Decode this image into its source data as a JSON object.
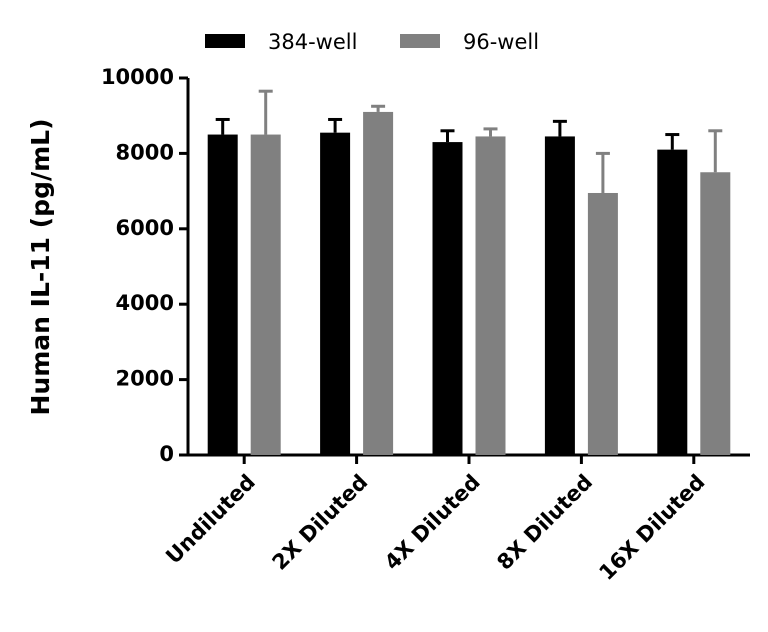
{
  "chart_data": {
    "type": "bar",
    "y_label": "Human IL-11 (pg/mL)",
    "categories": [
      "Undiluted",
      "2X Diluted",
      "4X Diluted",
      "8X Diluted",
      "16X Diluted"
    ],
    "series": [
      {
        "name": "384-well",
        "color": "#000000",
        "values": [
          8500,
          8550,
          8300,
          8450,
          8100
        ],
        "errors": [
          400,
          350,
          300,
          400,
          400
        ]
      },
      {
        "name": "96-well",
        "color": "#808080",
        "values": [
          8500,
          9100,
          8450,
          6950,
          7500
        ],
        "errors": [
          1150,
          150,
          200,
          1050,
          1100
        ]
      }
    ],
    "ylim": [
      0,
      10000
    ],
    "yticks": [
      0,
      2000,
      4000,
      6000,
      8000,
      10000
    ],
    "legend": "top"
  }
}
